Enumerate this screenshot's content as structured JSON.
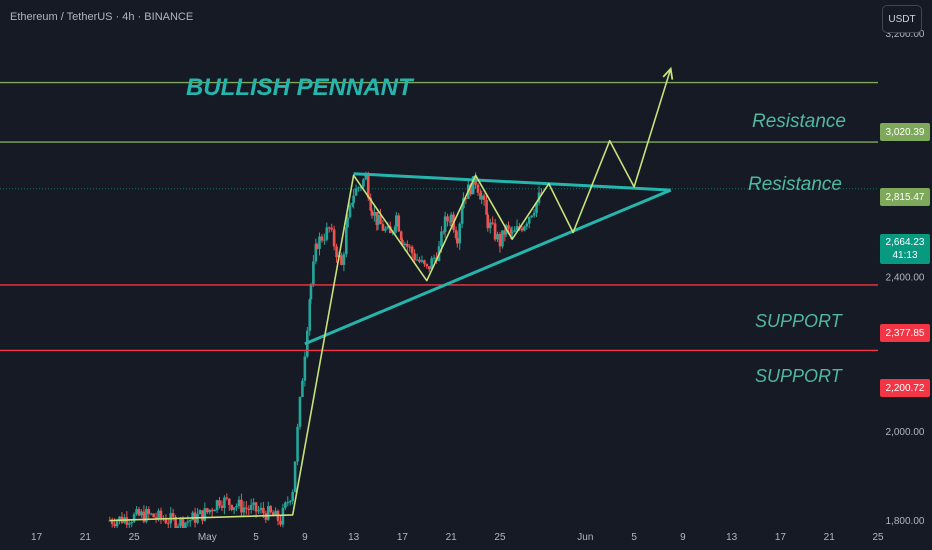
{
  "header": {
    "symbol": "Ethereum / TetherUS · 4h · BINANCE",
    "currency_button": "USDT"
  },
  "annotations": {
    "pattern_title": "BULLISH PENNANT",
    "levels": [
      {
        "label": "Resistance",
        "price": 3020.39,
        "tag": "3,020.39",
        "kind": "resistance"
      },
      {
        "label": "Resistance",
        "price": 2815.47,
        "tag": "2,815.47",
        "kind": "resistance"
      },
      {
        "label": "SUPPORT",
        "price": 2377.85,
        "tag": "2,377.85",
        "kind": "support"
      },
      {
        "label": "SUPPORT",
        "price": 2200.72,
        "tag": "2,200.72",
        "kind": "support"
      }
    ],
    "last_price": {
      "price": "2,664.23",
      "countdown": "41:13"
    }
  },
  "colors": {
    "background": "#161a25",
    "resistance_line": "#7ea85a",
    "support_line": "#f23645",
    "pennant": "#26b5ad",
    "path": "#c6e27a",
    "candle_up": "#26a69a",
    "candle_down": "#ef5350"
  },
  "chart_data": {
    "type": "candlestick",
    "instrument": "Ethereum / TetherUS",
    "timeframe": "4h",
    "exchange": "BINANCE",
    "y_axis": {
      "ticks": [
        {
          "value": 3200,
          "label": "3,200.00"
        },
        {
          "value": 2400,
          "label": "2,400.00"
        },
        {
          "value": 2000,
          "label": "2,000.00"
        },
        {
          "value": 1800,
          "label": "1,800.00"
        }
      ],
      "range": [
        1780,
        3330
      ]
    },
    "x_axis": {
      "ticks": [
        {
          "date": "2025-04-17",
          "label": "17"
        },
        {
          "date": "2025-04-21",
          "label": "21"
        },
        {
          "date": "2025-04-25",
          "label": "25"
        },
        {
          "date": "2025-05-01",
          "label": "May"
        },
        {
          "date": "2025-05-05",
          "label": "5"
        },
        {
          "date": "2025-05-09",
          "label": "9"
        },
        {
          "date": "2025-05-13",
          "label": "13"
        },
        {
          "date": "2025-05-17",
          "label": "17"
        },
        {
          "date": "2025-05-21",
          "label": "21"
        },
        {
          "date": "2025-05-25",
          "label": "25"
        },
        {
          "date": "2025-06-01",
          "label": "Jun"
        },
        {
          "date": "2025-06-05",
          "label": "5"
        },
        {
          "date": "2025-06-09",
          "label": "9"
        },
        {
          "date": "2025-06-13",
          "label": "13"
        },
        {
          "date": "2025-06-17",
          "label": "17"
        },
        {
          "date": "2025-06-21",
          "label": "21"
        },
        {
          "date": "2025-06-25",
          "label": "25"
        }
      ],
      "range": [
        "2025-04-14",
        "2025-06-25"
      ]
    },
    "price_path": [
      {
        "date": "2025-04-23",
        "price": 1800
      },
      {
        "date": "2025-04-26",
        "price": 1812
      },
      {
        "date": "2025-04-29",
        "price": 1795
      },
      {
        "date": "2025-05-01",
        "price": 1818
      },
      {
        "date": "2025-05-02",
        "price": 1845
      },
      {
        "date": "2025-05-04",
        "price": 1828
      },
      {
        "date": "2025-05-06",
        "price": 1815
      },
      {
        "date": "2025-05-07",
        "price": 1800
      },
      {
        "date": "2025-05-08",
        "price": 1870
      },
      {
        "date": "2025-05-09",
        "price": 2200
      },
      {
        "date": "2025-05-09T12:00",
        "price": 2380
      },
      {
        "date": "2025-05-10",
        "price": 2500
      },
      {
        "date": "2025-05-11",
        "price": 2540
      },
      {
        "date": "2025-05-12",
        "price": 2430
      },
      {
        "date": "2025-05-12T12:00",
        "price": 2560
      },
      {
        "date": "2025-05-13",
        "price": 2650
      },
      {
        "date": "2025-05-14",
        "price": 2700
      },
      {
        "date": "2025-05-14T12:00",
        "price": 2600
      },
      {
        "date": "2025-05-15",
        "price": 2560
      },
      {
        "date": "2025-05-16",
        "price": 2520
      },
      {
        "date": "2025-05-16T12:00",
        "price": 2580
      },
      {
        "date": "2025-05-17",
        "price": 2510
      },
      {
        "date": "2025-05-18",
        "price": 2460
      },
      {
        "date": "2025-05-19",
        "price": 2420
      },
      {
        "date": "2025-05-20",
        "price": 2480
      },
      {
        "date": "2025-05-20T12:00",
        "price": 2560
      },
      {
        "date": "2025-05-21",
        "price": 2580
      },
      {
        "date": "2025-05-21T12:00",
        "price": 2520
      },
      {
        "date": "2025-05-22",
        "price": 2640
      },
      {
        "date": "2025-05-23",
        "price": 2690
      },
      {
        "date": "2025-05-23T12:00",
        "price": 2640
      },
      {
        "date": "2025-05-24",
        "price": 2560
      },
      {
        "date": "2025-05-25",
        "price": 2500
      },
      {
        "date": "2025-05-25T12:00",
        "price": 2540
      },
      {
        "date": "2025-05-26",
        "price": 2520
      },
      {
        "date": "2025-05-27",
        "price": 2560
      },
      {
        "date": "2025-05-28",
        "price": 2620
      },
      {
        "date": "2025-05-28T12:00",
        "price": 2660
      }
    ],
    "pennant": {
      "upper": [
        {
          "date": "2025-05-13",
          "price": 2712
        },
        {
          "date": "2025-06-08",
          "price": 2660
        }
      ],
      "lower": [
        {
          "date": "2025-05-09",
          "price": 2218
        },
        {
          "date": "2025-06-08",
          "price": 2660
        }
      ]
    },
    "projection": [
      {
        "date": "2025-04-23",
        "price": 1800
      },
      {
        "date": "2025-05-08",
        "price": 1812
      },
      {
        "date": "2025-05-13",
        "price": 2707
      },
      {
        "date": "2025-05-19",
        "price": 2390
      },
      {
        "date": "2025-05-23",
        "price": 2707
      },
      {
        "date": "2025-05-26",
        "price": 2510
      },
      {
        "date": "2025-05-29",
        "price": 2680
      },
      {
        "date": "2025-05-31",
        "price": 2530
      },
      {
        "date": "2025-06-03",
        "price": 2820
      },
      {
        "date": "2025-06-05",
        "price": 2670
      },
      {
        "date": "2025-06-08",
        "price": 3070
      }
    ]
  }
}
